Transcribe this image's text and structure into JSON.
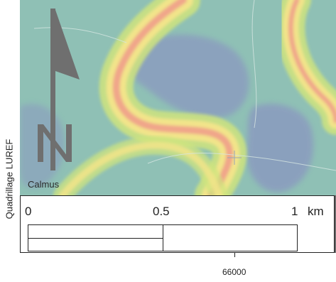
{
  "map": {
    "place_label": "Calmus",
    "north_arrow_letter": "N",
    "grid_label": "Quadrillage LUREF",
    "easting_label": "66000",
    "colors": {
      "base": "#8fc0b5",
      "low_zone": "#8a99c0",
      "band_outer": "#cfe47e",
      "band_mid": "#f2e48a",
      "band_core": "#f0a68a",
      "arrow": "#6f6f6f"
    }
  },
  "scale_bar": {
    "label_start": "0",
    "label_mid": "0.5",
    "label_end": "1",
    "unit": "km"
  }
}
